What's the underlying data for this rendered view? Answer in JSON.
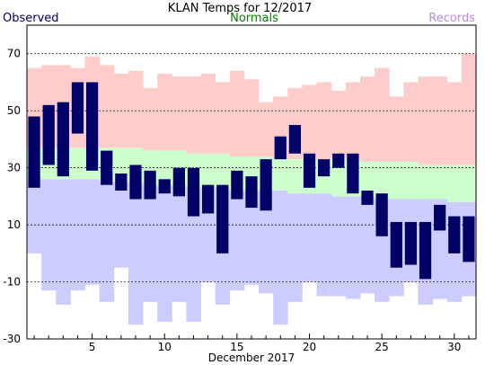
{
  "chart_data": {
    "type": "bar",
    "title": "KLAN Temps for 12/2017",
    "xlabel": "December 2017",
    "ylabel": "",
    "xlim": [
      0.5,
      31.5
    ],
    "ylim": [
      -30,
      80
    ],
    "x_ticks": [
      5,
      10,
      15,
      20,
      25,
      30
    ],
    "y_ticks": [
      70,
      50,
      30,
      10,
      -10,
      -30
    ],
    "gridlines_at": [
      70,
      50,
      30,
      10,
      -10
    ],
    "grid_style": "dashed horizontal",
    "legend": [
      {
        "name": "Observed",
        "color": "#000066",
        "position": "top-left"
      },
      {
        "name": "Normals",
        "color": "#008000",
        "position": "top-center"
      },
      {
        "name": "Records",
        "color": "#bb88dd",
        "position": "top-right"
      }
    ],
    "colors": {
      "record_high_band": "#ffcccc",
      "normal_band": "#ccffcc",
      "record_low_band": "#ccccff",
      "observed_bar": "#000066"
    },
    "days": [
      1,
      2,
      3,
      4,
      5,
      6,
      7,
      8,
      9,
      10,
      11,
      12,
      13,
      14,
      15,
      16,
      17,
      18,
      19,
      20,
      21,
      22,
      23,
      24,
      25,
      26,
      27,
      28,
      29,
      30,
      31
    ],
    "observed_high": [
      48,
      52,
      53,
      60,
      60,
      36,
      28,
      31,
      29,
      26,
      30,
      30,
      24,
      24,
      29,
      27,
      33,
      41,
      45,
      35,
      33,
      35,
      35,
      22,
      21,
      11,
      11,
      11,
      17,
      13,
      13
    ],
    "observed_low": [
      23,
      31,
      27,
      42,
      29,
      24,
      22,
      19,
      19,
      21,
      20,
      13,
      14,
      0,
      19,
      16,
      15,
      33,
      35,
      23,
      27,
      30,
      21,
      17,
      6,
      -5,
      -4,
      -9,
      8,
      0,
      -3
    ],
    "record_high": [
      65,
      66,
      66,
      65,
      69,
      66,
      63,
      64,
      58,
      63,
      62,
      62,
      63,
      60,
      64,
      61,
      53,
      55,
      58,
      59,
      60,
      57,
      60,
      62,
      65,
      55,
      60,
      62,
      62,
      60,
      70
    ],
    "normal_high": [
      37,
      37,
      37,
      37,
      37,
      37,
      37,
      37,
      36,
      36,
      36,
      35,
      35,
      35,
      34,
      34,
      34,
      33,
      33,
      33,
      33,
      33,
      33,
      32,
      32,
      32,
      32,
      31,
      31,
      31,
      31
    ],
    "normal_low": [
      26,
      26,
      26,
      26,
      26,
      25,
      25,
      25,
      24,
      24,
      24,
      23,
      23,
      23,
      22,
      22,
      22,
      22,
      21,
      21,
      21,
      20,
      20,
      20,
      19,
      19,
      19,
      19,
      19,
      18,
      18
    ],
    "record_low": [
      0,
      -13,
      -18,
      -13,
      -11,
      -17,
      -5,
      -25,
      -17,
      -24,
      -17,
      -24,
      -10,
      -18,
      -13,
      -11,
      -14,
      -25,
      -17,
      -10,
      -15,
      -15,
      -16,
      -14,
      -17,
      -15,
      -10,
      -18,
      -16,
      -17,
      -15
    ]
  }
}
